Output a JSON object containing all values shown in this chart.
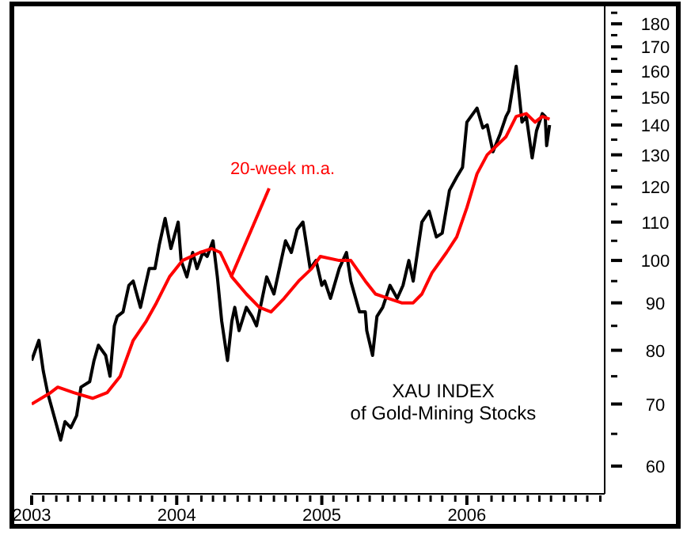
{
  "chart_data": {
    "type": "line",
    "title": "XAU INDEX",
    "subtitle": "of Gold-Mining Stocks",
    "log": "y",
    "xlim": [
      2003,
      2006.95
    ],
    "xticks": [
      2003,
      {
        "value": 2003.08,
        "label": null
      },
      {
        "value": 2003.17,
        "label": null
      },
      {
        "value": 2003.25,
        "label": null
      },
      {
        "value": 2003.33,
        "label": null
      },
      {
        "value": 2003.42,
        "label": null
      },
      {
        "value": 2003.5,
        "label": null
      },
      {
        "value": 2003.58,
        "label": null
      },
      {
        "value": 2003.67,
        "label": null
      },
      {
        "value": 2003.75,
        "label": null
      },
      {
        "value": 2003.83,
        "label": null
      },
      {
        "value": 2003.92,
        "label": null
      },
      2004,
      {
        "value": 2004.08,
        "label": null
      },
      {
        "value": 2004.17,
        "label": null
      },
      {
        "value": 2004.25,
        "label": null
      },
      {
        "value": 2004.33,
        "label": null
      },
      {
        "value": 2004.42,
        "label": null
      },
      {
        "value": 2004.5,
        "label": null
      },
      {
        "value": 2004.58,
        "label": null
      },
      {
        "value": 2004.67,
        "label": null
      },
      {
        "value": 2004.75,
        "label": null
      },
      {
        "value": 2004.83,
        "label": null
      },
      {
        "value": 2004.92,
        "label": null
      },
      2005,
      {
        "value": 2005.08,
        "label": null
      },
      {
        "value": 2005.17,
        "label": null
      },
      {
        "value": 2005.25,
        "label": null
      },
      {
        "value": 2005.33,
        "label": null
      },
      {
        "value": 2005.42,
        "label": null
      },
      {
        "value": 2005.5,
        "label": null
      },
      {
        "value": 2005.58,
        "label": null
      },
      {
        "value": 2005.67,
        "label": null
      },
      {
        "value": 2005.75,
        "label": null
      },
      {
        "value": 2005.83,
        "label": null
      },
      {
        "value": 2005.92,
        "label": null
      },
      2006,
      {
        "value": 2006.08,
        "label": null
      },
      {
        "value": 2006.17,
        "label": null
      },
      {
        "value": 2006.25,
        "label": null
      },
      {
        "value": 2006.33,
        "label": null
      },
      {
        "value": 2006.42,
        "label": null
      },
      {
        "value": 2006.5,
        "label": null
      },
      {
        "value": 2006.58,
        "label": null
      },
      {
        "value": 2006.67,
        "label": null
      },
      {
        "value": 2006.75,
        "label": null
      },
      {
        "value": 2006.83,
        "label": null
      },
      {
        "value": 2006.92,
        "label": null
      }
    ],
    "ylim": [
      56,
      188
    ],
    "yticks": [
      60,
      {
        "value": 65,
        "label": null
      },
      70,
      {
        "value": 75,
        "label": null
      },
      80,
      {
        "value": 85,
        "label": null
      },
      90,
      {
        "value": 95,
        "label": null
      },
      100,
      {
        "value": 105,
        "label": null
      },
      110,
      {
        "value": 115,
        "label": null
      },
      120,
      {
        "value": 125,
        "label": null
      },
      130,
      {
        "value": 135,
        "label": null
      },
      140,
      {
        "value": 145,
        "label": null
      },
      150,
      {
        "value": 155,
        "label": null
      },
      160,
      {
        "value": 165,
        "label": null
      },
      170,
      {
        "value": 175,
        "label": null
      },
      180,
      {
        "value": 185,
        "label": null
      }
    ],
    "series": [
      {
        "color": "#000000",
        "x": [
          2003.0,
          2003.05,
          2003.08,
          2003.11,
          2003.2,
          2003.23,
          2003.27,
          2003.31,
          2003.34,
          2003.4,
          2003.43,
          2003.46,
          2003.51,
          2003.54,
          2003.57,
          2003.59,
          2003.63,
          2003.67,
          2003.7,
          2003.75,
          2003.81,
          2003.85,
          2003.88,
          2003.92,
          2003.96,
          2004.01,
          2004.03,
          2004.07,
          2004.11,
          2004.14,
          2004.18,
          2004.21,
          2004.25,
          2004.28,
          2004.31,
          2004.35,
          2004.38,
          2004.4,
          2004.43,
          2004.48,
          2004.52,
          2004.55,
          2004.57,
          2004.62,
          2004.67,
          2004.72,
          2004.75,
          2004.79,
          2004.83,
          2004.87,
          2004.92,
          2004.96,
          2005.0,
          2005.02,
          2005.06,
          2005.12,
          2005.17,
          2005.2,
          2005.26,
          2005.3,
          2005.31,
          2005.35,
          2005.38,
          2005.42,
          2005.47,
          2005.52,
          2005.56,
          2005.6,
          2005.63,
          2005.69,
          2005.74,
          2005.79,
          2005.83,
          2005.88,
          2005.93,
          2005.97,
          2006.0,
          2006.07,
          2006.11,
          2006.14,
          2006.18,
          2006.23,
          2006.27,
          2006.29,
          2006.34,
          2006.38,
          2006.41,
          2006.45,
          2006.48,
          2006.52,
          2006.54,
          2006.55,
          2006.57
        ],
        "values": [
          78,
          82,
          76,
          72,
          64,
          67,
          66,
          68,
          73,
          74,
          78,
          81,
          79,
          75,
          85,
          87,
          88,
          94,
          95,
          89,
          98,
          98,
          104,
          111,
          103,
          110,
          100,
          96,
          102,
          98,
          102,
          101,
          105,
          96,
          86,
          78,
          86,
          89,
          84,
          89,
          87,
          85,
          88,
          96,
          92,
          100,
          105,
          102,
          108,
          110,
          98,
          100,
          94,
          95,
          91,
          98,
          102,
          95,
          88,
          88,
          84,
          79,
          87,
          89,
          94,
          91,
          94,
          100,
          95,
          110,
          113,
          106,
          107,
          119,
          123,
          126,
          141,
          146,
          139,
          140,
          131,
          137,
          143,
          145,
          162,
          141,
          143,
          129,
          138,
          144,
          143,
          133,
          140
        ]
      },
      {
        "name": "20-week m.a.",
        "color": "#ff0000",
        "x": [
          2003.0,
          2003.13,
          2003.18,
          2003.29,
          2003.42,
          2003.52,
          2003.61,
          2003.7,
          2003.79,
          2003.86,
          2003.95,
          2004.04,
          2004.16,
          2004.24,
          2004.3,
          2004.38,
          2004.48,
          2004.57,
          2004.65,
          2004.74,
          2004.84,
          2004.93,
          2004.99,
          2005.12,
          2005.2,
          2005.3,
          2005.37,
          2005.46,
          2005.55,
          2005.63,
          2005.69,
          2005.76,
          2005.86,
          2005.93,
          2006.0,
          2006.07,
          2006.14,
          2006.27,
          2006.34,
          2006.41,
          2006.47,
          2006.52,
          2006.57
        ],
        "values": [
          70,
          72,
          73,
          72,
          71,
          72,
          75,
          82,
          86,
          90,
          96,
          100,
          102,
          103,
          102,
          96,
          92,
          89,
          88,
          91,
          95,
          98,
          101,
          100,
          100,
          95,
          92,
          91,
          90,
          90,
          92,
          97,
          102,
          106,
          114,
          124,
          130,
          136,
          143,
          144,
          141,
          143,
          142
        ]
      }
    ]
  }
}
